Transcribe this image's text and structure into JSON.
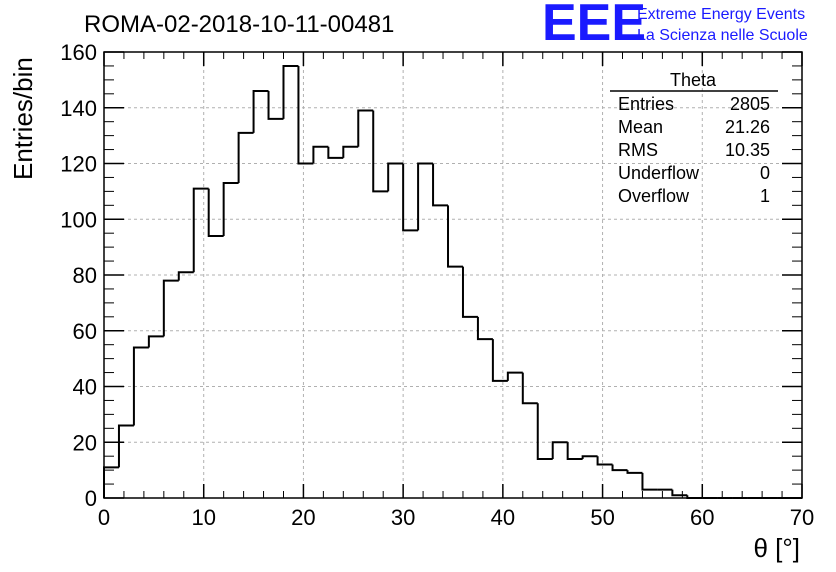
{
  "chart_data": {
    "type": "histogram",
    "title": "ROMA-02-2018-10-11-00481",
    "xlabel": "θ [°]",
    "ylabel": "Entries/bin",
    "xlim": [
      0,
      70
    ],
    "ylim": [
      0,
      160
    ],
    "bin_width": 1.5,
    "bin_start": 0,
    "x_ticks": [
      0,
      10,
      20,
      30,
      40,
      50,
      60,
      70
    ],
    "y_ticks": [
      0,
      20,
      40,
      60,
      80,
      100,
      120,
      140,
      160
    ],
    "grid": true,
    "values": [
      11,
      26,
      54,
      58,
      78,
      81,
      111,
      94,
      113,
      131,
      146,
      136,
      155,
      120,
      126,
      122,
      126,
      139,
      110,
      120,
      96,
      120,
      105,
      83,
      65,
      57,
      42,
      45,
      34,
      14,
      20,
      14,
      15,
      12,
      10,
      9,
      3,
      3,
      1,
      0,
      0,
      0,
      0,
      0,
      0,
      0,
      0
    ]
  },
  "stats_box": {
    "title": "Theta",
    "rows": [
      {
        "label": "Entries",
        "value": "2805"
      },
      {
        "label": "Mean",
        "value": "21.26"
      },
      {
        "label": "RMS",
        "value": "10.35"
      },
      {
        "label": "Underflow",
        "value": "0"
      },
      {
        "label": "Overflow",
        "value": "1"
      }
    ]
  },
  "logo": {
    "mark": "EEE",
    "line1": "Extreme Energy Events",
    "line2": "La Scienza nelle Scuole",
    "color": "#1a1aff"
  }
}
